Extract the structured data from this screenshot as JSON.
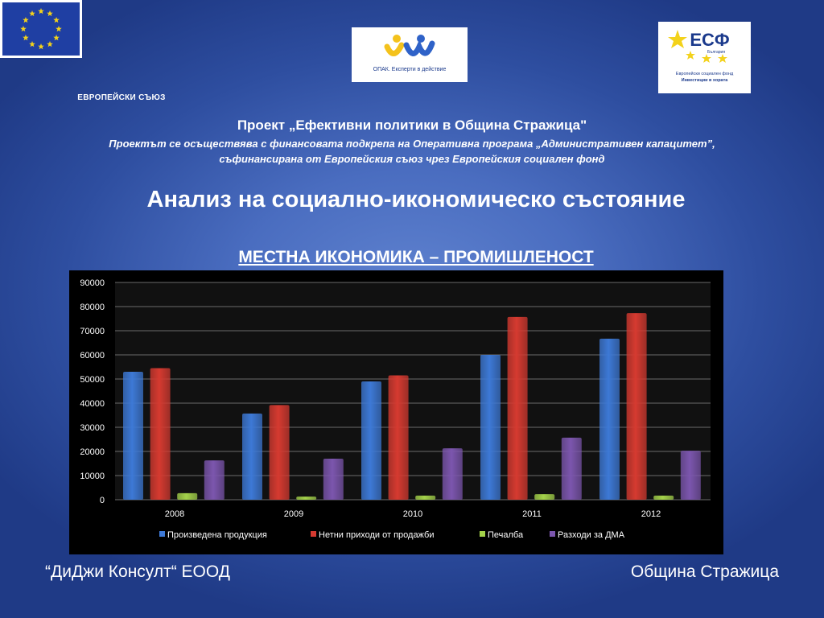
{
  "logos": {
    "eu_label": "ЕВРОПЕЙСКИ СЪЮЗ",
    "opak_text": "ОПАК. Експерти в действие",
    "esf_mark": "ЕСФ",
    "esf_country": "България",
    "esf_line1": "Европейски социален фонд",
    "esf_line2": "Инвестиции в хората"
  },
  "header": {
    "project_title": "Проект „Ефективни политики в Община Стражица\"",
    "project_sub1": "Проектът се осъществява с финансовата подкрепа на Оперативна програма „Административен капацитет”,",
    "project_sub2": "съфинансирана от Европейския съюз чрез Европейския социален фонд"
  },
  "main": {
    "analysis_title": "Анализ на социално-икономическо състояние",
    "section_title": "МЕСТНА ИКОНОМИКА – ПРОМИШЛЕНОСТ"
  },
  "chart_data": {
    "type": "bar",
    "categories": [
      "2008",
      "2009",
      "2010",
      "2011",
      "2012"
    ],
    "series": [
      {
        "name": "Произведена продукция",
        "values": [
          53000,
          35700,
          49000,
          60000,
          66700
        ],
        "color": "#3d79d6"
      },
      {
        "name": "Нетни приходи от продажби",
        "values": [
          54500,
          39200,
          51500,
          75700,
          77300
        ],
        "color": "#d63a30"
      },
      {
        "name": "Печалба",
        "values": [
          2700,
          1300,
          1700,
          2300,
          1700
        ],
        "color": "#a4d24a"
      },
      {
        "name": "Разходи за ДМА",
        "values": [
          16300,
          17000,
          21300,
          25700,
          20300
        ],
        "color": "#7c56ae"
      }
    ],
    "ylim": [
      0,
      90000
    ],
    "yticks": [
      "0",
      "10000",
      "20000",
      "30000",
      "40000",
      "50000",
      "60000",
      "70000",
      "80000",
      "90000"
    ],
    "grid": true,
    "legend": "bottom"
  },
  "footer": {
    "left": "“ДиДжи Консулт“ ЕООД",
    "right": "Община Стражица"
  }
}
